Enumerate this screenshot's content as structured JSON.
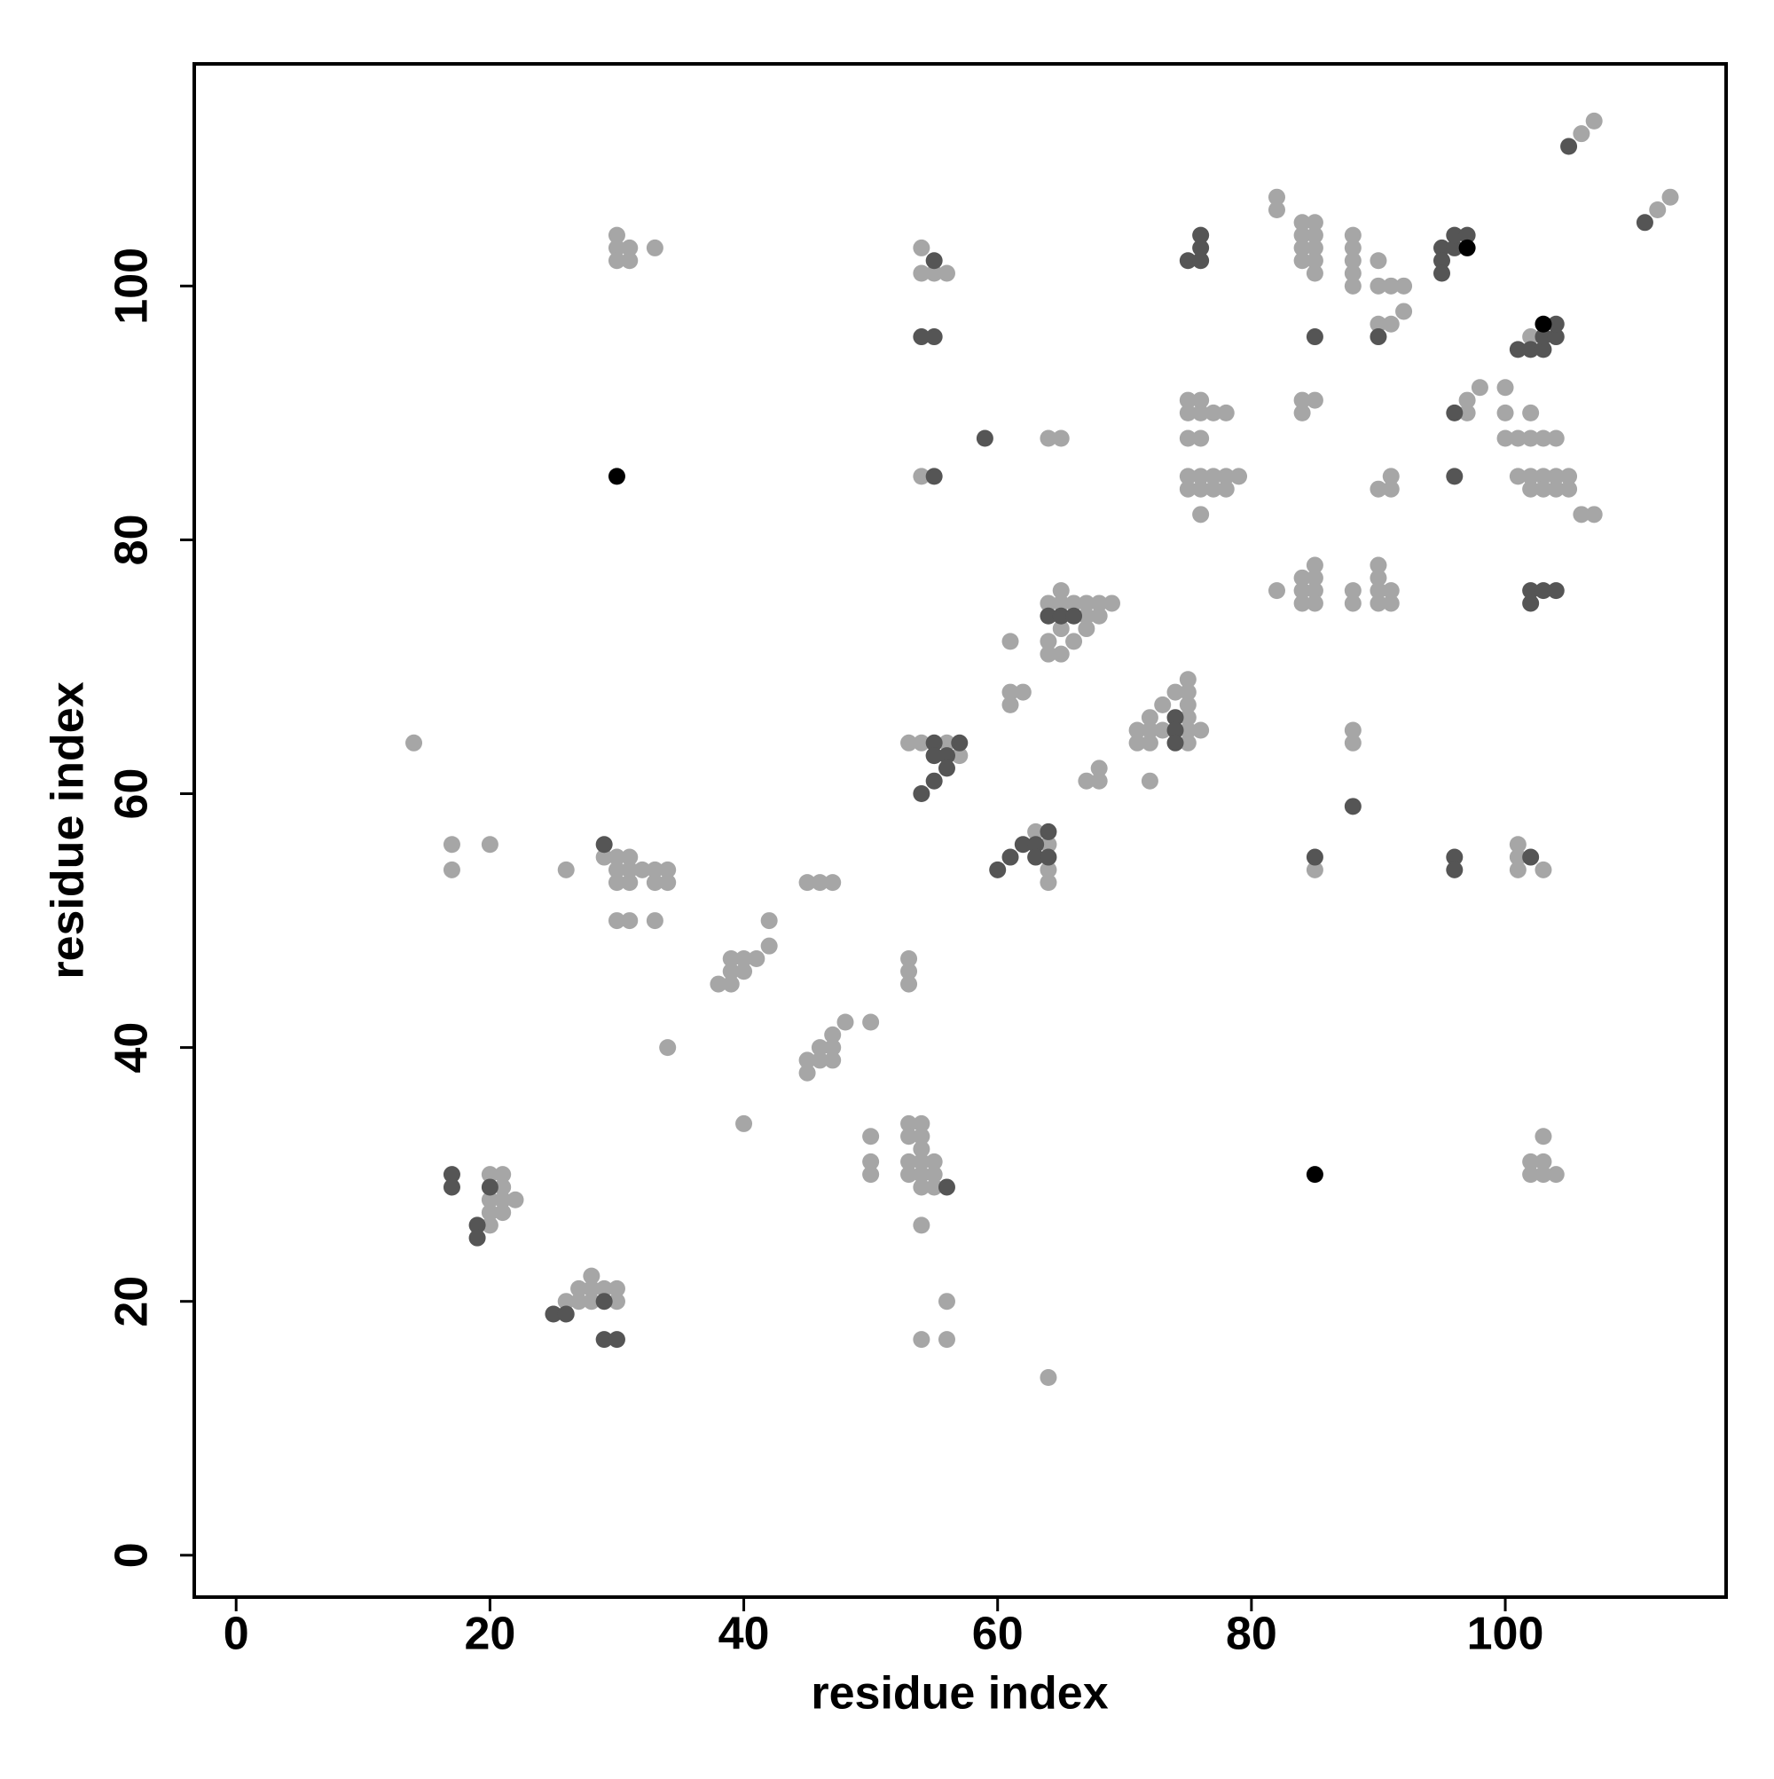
{
  "chart_data": {
    "type": "scatter",
    "xlabel": "residue index",
    "ylabel": "residue index",
    "xlim": [
      -3.3,
      117.4
    ],
    "ylim": [
      -3.3,
      117.5
    ],
    "xticks": [
      0,
      20,
      40,
      60,
      80,
      100
    ],
    "yticks": [
      0,
      20,
      40,
      60,
      80,
      100
    ],
    "series": [
      {
        "color": "#a6a6a6",
        "x": [
          14,
          17,
          17,
          20,
          26,
          29,
          30,
          31,
          30,
          31,
          32,
          33,
          34,
          30,
          31,
          33,
          34,
          30,
          31,
          33,
          34,
          40,
          38,
          39,
          39,
          39,
          40,
          40,
          41,
          42,
          42,
          45,
          46,
          47,
          45,
          45,
          46,
          46,
          47,
          47,
          47,
          48,
          50,
          53,
          53,
          53,
          50,
          50,
          50,
          53,
          54,
          53,
          54,
          54,
          53,
          54,
          55,
          53,
          54,
          55,
          54,
          55,
          54,
          54,
          56,
          56,
          64,
          20,
          21,
          20,
          21,
          21,
          22,
          20,
          21,
          20,
          26,
          27,
          27,
          28,
          28,
          28,
          29,
          30,
          30,
          30,
          30,
          31,
          30,
          31,
          33,
          54,
          54,
          55,
          56,
          54,
          53,
          54,
          56,
          57,
          55,
          61,
          61,
          62,
          61,
          64,
          65,
          63,
          64,
          64,
          64,
          64,
          65,
          66,
          67,
          68,
          69,
          65,
          64,
          65,
          64,
          65,
          66,
          67,
          67,
          68,
          67,
          68,
          68,
          72,
          71,
          72,
          71,
          72,
          72,
          73,
          73,
          74,
          75,
          75,
          75,
          75,
          75,
          75,
          76,
          75,
          76,
          75,
          76,
          77,
          78,
          75,
          76,
          75,
          76,
          77,
          78,
          79,
          75,
          76,
          77,
          78,
          76,
          82,
          82,
          84,
          85,
          84,
          85,
          84,
          85,
          84,
          85,
          85,
          88,
          88,
          88,
          88,
          88,
          90,
          90,
          91,
          92,
          90,
          91,
          92,
          84,
          85,
          84,
          90,
          91,
          91,
          82,
          84,
          85,
          84,
          85,
          85,
          84,
          85,
          88,
          88,
          90,
          90,
          90,
          91,
          90,
          91,
          88,
          88,
          85,
          97,
          97,
          98,
          100,
          100,
          100,
          101,
          102,
          103,
          104,
          102,
          101,
          102,
          103,
          104,
          105,
          102,
          103,
          104,
          105,
          106,
          107,
          102,
          103,
          101,
          101,
          101,
          103,
          102,
          103,
          102,
          103,
          104,
          103,
          106,
          107,
          112,
          113
        ],
        "values": [
          64,
          56,
          54,
          56,
          54,
          55,
          55,
          55,
          54,
          54,
          54,
          54,
          54,
          53,
          53,
          53,
          53,
          50,
          50,
          50,
          40,
          34,
          45,
          45,
          46,
          47,
          46,
          47,
          47,
          48,
          50,
          53,
          53,
          53,
          38,
          39,
          39,
          40,
          39,
          40,
          41,
          42,
          42,
          47,
          46,
          45,
          33,
          31,
          30,
          34,
          34,
          33,
          33,
          32,
          31,
          31,
          31,
          30,
          30,
          30,
          29,
          29,
          26,
          17,
          17,
          20,
          14,
          30,
          30,
          28,
          29,
          28,
          28,
          27,
          27,
          26,
          20,
          20,
          21,
          21,
          22,
          20,
          21,
          21,
          20,
          104,
          103,
          103,
          102,
          102,
          103,
          103,
          101,
          101,
          101,
          85,
          64,
          64,
          64,
          63,
          63,
          72,
          68,
          68,
          67,
          88,
          88,
          57,
          56,
          54,
          53,
          75,
          75,
          75,
          75,
          75,
          75,
          76,
          72,
          73,
          71,
          71,
          72,
          73,
          74,
          74,
          61,
          61,
          62,
          61,
          65,
          65,
          64,
          64,
          66,
          65,
          67,
          68,
          68,
          69,
          67,
          66,
          65,
          64,
          65,
          91,
          91,
          90,
          90,
          90,
          90,
          88,
          88,
          85,
          85,
          85,
          85,
          85,
          84,
          84,
          84,
          84,
          82,
          107,
          106,
          105,
          105,
          104,
          104,
          103,
          103,
          102,
          102,
          101,
          104,
          103,
          102,
          101,
          100,
          102,
          100,
          100,
          100,
          97,
          97,
          98,
          91,
          91,
          90,
          84,
          84,
          85,
          76,
          77,
          78,
          76,
          77,
          76,
          75,
          75,
          76,
          75,
          78,
          77,
          76,
          76,
          75,
          75,
          65,
          64,
          54,
          91,
          90,
          92,
          92,
          90,
          88,
          88,
          88,
          88,
          88,
          90,
          85,
          85,
          85,
          85,
          85,
          84,
          84,
          84,
          84,
          82,
          82,
          96,
          96,
          56,
          55,
          54,
          54,
          31,
          31,
          30,
          30,
          30,
          33,
          112,
          113,
          106,
          107
        ]
      },
      {
        "color": "#555555",
        "x": [
          17,
          17,
          20,
          19,
          19,
          25,
          26,
          29,
          29,
          30,
          29,
          54,
          55,
          55,
          55,
          55,
          55,
          56,
          56,
          57,
          55,
          54,
          59,
          60,
          61,
          62,
          63,
          63,
          64,
          64,
          64,
          65,
          66,
          74,
          74,
          74,
          75,
          76,
          76,
          76,
          56,
          85,
          90,
          85,
          88,
          95,
          95,
          95,
          96,
          96,
          97,
          96,
          96,
          96,
          96,
          101,
          102,
          103,
          103,
          104,
          104,
          102,
          102,
          103,
          104,
          102,
          105,
          111
        ],
        "values": [
          30,
          29,
          29,
          26,
          25,
          19,
          19,
          20,
          17,
          17,
          56,
          96,
          96,
          102,
          85,
          64,
          63,
          63,
          62,
          64,
          61,
          60,
          88,
          54,
          55,
          56,
          56,
          55,
          55,
          57,
          74,
          74,
          74,
          66,
          65,
          64,
          102,
          102,
          103,
          104,
          29,
          96,
          96,
          55,
          59,
          103,
          102,
          101,
          103,
          104,
          104,
          90,
          85,
          55,
          54,
          95,
          95,
          95,
          96,
          96,
          97,
          76,
          75,
          76,
          76,
          55,
          111,
          105
        ]
      },
      {
        "color": "#000000",
        "x": [
          30,
          85,
          97,
          103
        ],
        "values": [
          85,
          30,
          103,
          97
        ]
      }
    ]
  }
}
